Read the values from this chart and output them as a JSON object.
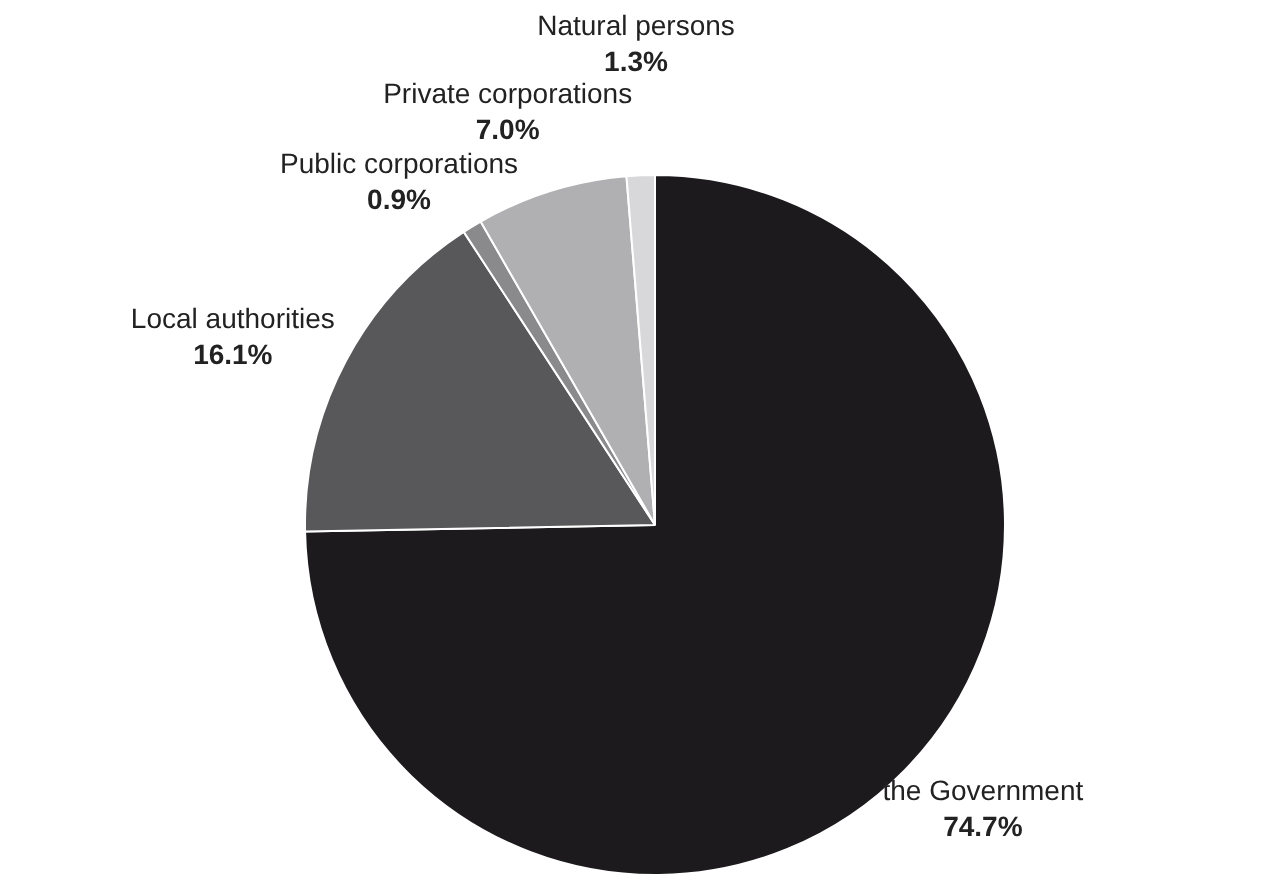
{
  "chart_data": {
    "type": "pie",
    "categories": [
      "the Government",
      "Local authorities",
      "Public corporations",
      "Private corporations",
      "Natural persons"
    ],
    "values": [
      74.7,
      16.1,
      0.9,
      7.0,
      1.3
    ],
    "value_labels": [
      "74.7%",
      "16.1%",
      "0.9%",
      "7.0%",
      "1.3%"
    ],
    "colors": [
      "#1c1a1d",
      "#58585a",
      "#8a8a8c",
      "#b0b0b2",
      "#d8d8da"
    ]
  }
}
